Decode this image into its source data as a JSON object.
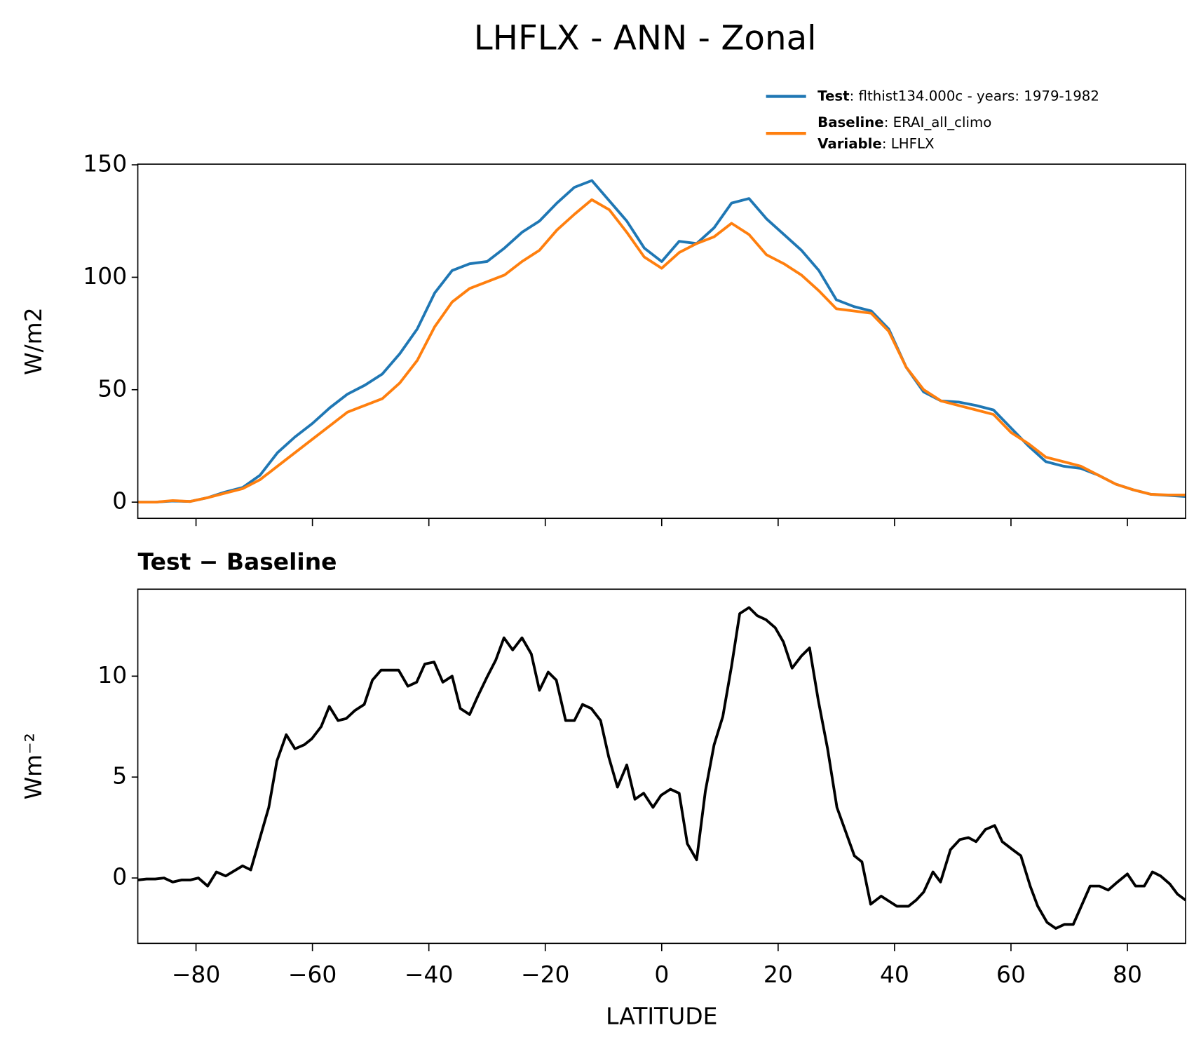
{
  "title": "LHFLX - ANN - Zonal",
  "chart_data": [
    {
      "type": "line",
      "ylabel": "W/m2",
      "x": [
        -90,
        -87,
        -84,
        -81,
        -78,
        -75,
        -72,
        -69,
        -66,
        -63,
        -60,
        -57,
        -54,
        -51,
        -48,
        -45,
        -42,
        -39,
        -36,
        -33,
        -30,
        -27,
        -24,
        -21,
        -18,
        -15,
        -12,
        -9,
        -6,
        -3,
        0,
        3,
        6,
        9,
        12,
        15,
        18,
        21,
        24,
        27,
        30,
        33,
        36,
        39,
        42,
        45,
        48,
        51,
        54,
        57,
        60,
        63,
        66,
        69,
        72,
        75,
        78,
        81,
        84,
        87,
        90
      ],
      "series": [
        {
          "name": "Test",
          "label": ": flthist134.000c - years: 1979-1982",
          "color": "#1f77b4",
          "values": [
            0,
            0,
            0.5,
            0.3,
            2,
            4.5,
            6.5,
            12,
            22,
            29,
            35,
            42,
            48,
            52,
            57,
            66,
            77,
            93,
            103,
            106,
            107,
            113,
            120,
            125,
            133,
            140,
            143,
            134,
            125,
            113,
            107,
            116,
            115,
            122,
            133,
            135,
            126,
            119,
            112,
            103,
            90,
            87,
            85,
            77,
            60,
            49,
            45,
            44.5,
            43,
            41,
            33,
            25,
            18,
            16,
            15,
            12,
            8,
            5.5,
            3.5,
            3,
            2.5
          ]
        },
        {
          "name": "Baseline",
          "label": ": ERAI_all_climo",
          "color": "#ff7f0e",
          "values": [
            0,
            0,
            0.7,
            0.3,
            2,
            4,
            6,
            10,
            16,
            22,
            28,
            34,
            40,
            43,
            46,
            53,
            63,
            78,
            89,
            95,
            98,
            101,
            107,
            112,
            121,
            128,
            134.5,
            130,
            120,
            109,
            104,
            111,
            115,
            118,
            124,
            119,
            110,
            106,
            101,
            94,
            86,
            85,
            84,
            76,
            60,
            50,
            45,
            43,
            41,
            39,
            31,
            26,
            20,
            18,
            16,
            12,
            8,
            5.5,
            3.5,
            3.2,
            3.2
          ]
        }
      ],
      "legend_extra": {
        "name": "Variable",
        "label": ": LHFLX"
      },
      "xlim": [
        -90,
        90
      ],
      "xticks": [
        -80,
        -60,
        -40,
        -20,
        0,
        20,
        40,
        60,
        80
      ],
      "ylim": [
        -7.2,
        150.3
      ],
      "yticks": [
        0,
        50,
        100,
        150
      ]
    },
    {
      "type": "line",
      "title": "Test − Baseline",
      "ylabel": "Wm⁻²",
      "xlabel": "LATITUDE",
      "color": "#000000",
      "x": [
        -90,
        -88.5,
        -87,
        -85.5,
        -84,
        -82.5,
        -81,
        -79.6,
        -78,
        -76.5,
        -74.9,
        -72,
        -70.6,
        -69,
        -67.5,
        -66.1,
        -64.5,
        -63,
        -61.4,
        -60.1,
        -58.5,
        -57.1,
        -55.6,
        -54.2,
        -52.7,
        -51.1,
        -49.7,
        -48.2,
        -45.2,
        -43.6,
        -42.1,
        -40.7,
        -39.1,
        -37.6,
        -36,
        -34.6,
        -33,
        -31.6,
        -30.1,
        -28.5,
        -27.1,
        -25.6,
        -24,
        -22.4,
        -21,
        -19.5,
        -18.1,
        -16.5,
        -15,
        -13.6,
        -12.1,
        -10.5,
        -9.1,
        -7.6,
        -6,
        -4.6,
        -3.1,
        -1.5,
        -0.1,
        1.5,
        3,
        4.4,
        6,
        7.5,
        9,
        10.5,
        12,
        13.4,
        15,
        16.4,
        17.9,
        19.5,
        20.9,
        22.4,
        24,
        25.4,
        26.9,
        28.5,
        30.1,
        33.1,
        34.4,
        35.9,
        37.7,
        40.4,
        42.4,
        43.7,
        45,
        46.6,
        47.9,
        49.6,
        51.2,
        52.7,
        54,
        55.6,
        57.2,
        58.5,
        60.3,
        61.7,
        63.3,
        64.6,
        66.2,
        67.7,
        69.2,
        70.7,
        73.6,
        75.2,
        76.7,
        78.3,
        80,
        81.4,
        82.9,
        84.3,
        85.7,
        87.3,
        88.6,
        90
      ],
      "values": [
        -0.1,
        -0.05,
        -0.05,
        0,
        -0.2,
        -0.1,
        -0.1,
        0,
        -0.4,
        0.3,
        0.1,
        0.6,
        0.4,
        2,
        3.5,
        5.8,
        7.1,
        6.4,
        6.6,
        6.9,
        7.5,
        8.5,
        7.8,
        7.9,
        8.3,
        8.6,
        9.8,
        10.3,
        10.3,
        9.5,
        9.7,
        10.6,
        10.7,
        9.7,
        10,
        8.4,
        8.1,
        9,
        9.9,
        10.8,
        11.9,
        11.3,
        11.9,
        11.1,
        9.3,
        10.2,
        9.8,
        7.8,
        7.8,
        8.6,
        8.4,
        7.8,
        6,
        4.5,
        5.6,
        3.9,
        4.2,
        3.5,
        4.1,
        4.4,
        4.2,
        1.7,
        0.9,
        4.3,
        6.6,
        8,
        10.5,
        13.1,
        13.4,
        13,
        12.8,
        12.4,
        11.7,
        10.4,
        11,
        11.4,
        8.8,
        6.4,
        3.5,
        1.1,
        0.8,
        -1.3,
        -0.9,
        -1.4,
        -1.4,
        -1.1,
        -0.7,
        0.3,
        -0.2,
        1.4,
        1.9,
        2,
        1.8,
        2.4,
        2.6,
        1.8,
        1.4,
        1.1,
        -0.4,
        -1.4,
        -2.2,
        -2.5,
        -2.3,
        -2.3,
        -0.4,
        -0.4,
        -0.6,
        -0.2,
        0.2,
        -0.4,
        -0.4,
        0.3,
        0.1,
        -0.3,
        -0.8,
        -1.1
      ],
      "xlim": [
        -90,
        90
      ],
      "xticks": [
        {
          "value": -80,
          "label": "−80"
        },
        {
          "value": -60,
          "label": "−60"
        },
        {
          "value": -40,
          "label": "−40"
        },
        {
          "value": -20,
          "label": "−20"
        },
        0,
        20,
        40,
        60,
        80
      ],
      "ylim": [
        -3.24,
        14.31
      ],
      "yticks": [
        0,
        5,
        10
      ]
    }
  ]
}
